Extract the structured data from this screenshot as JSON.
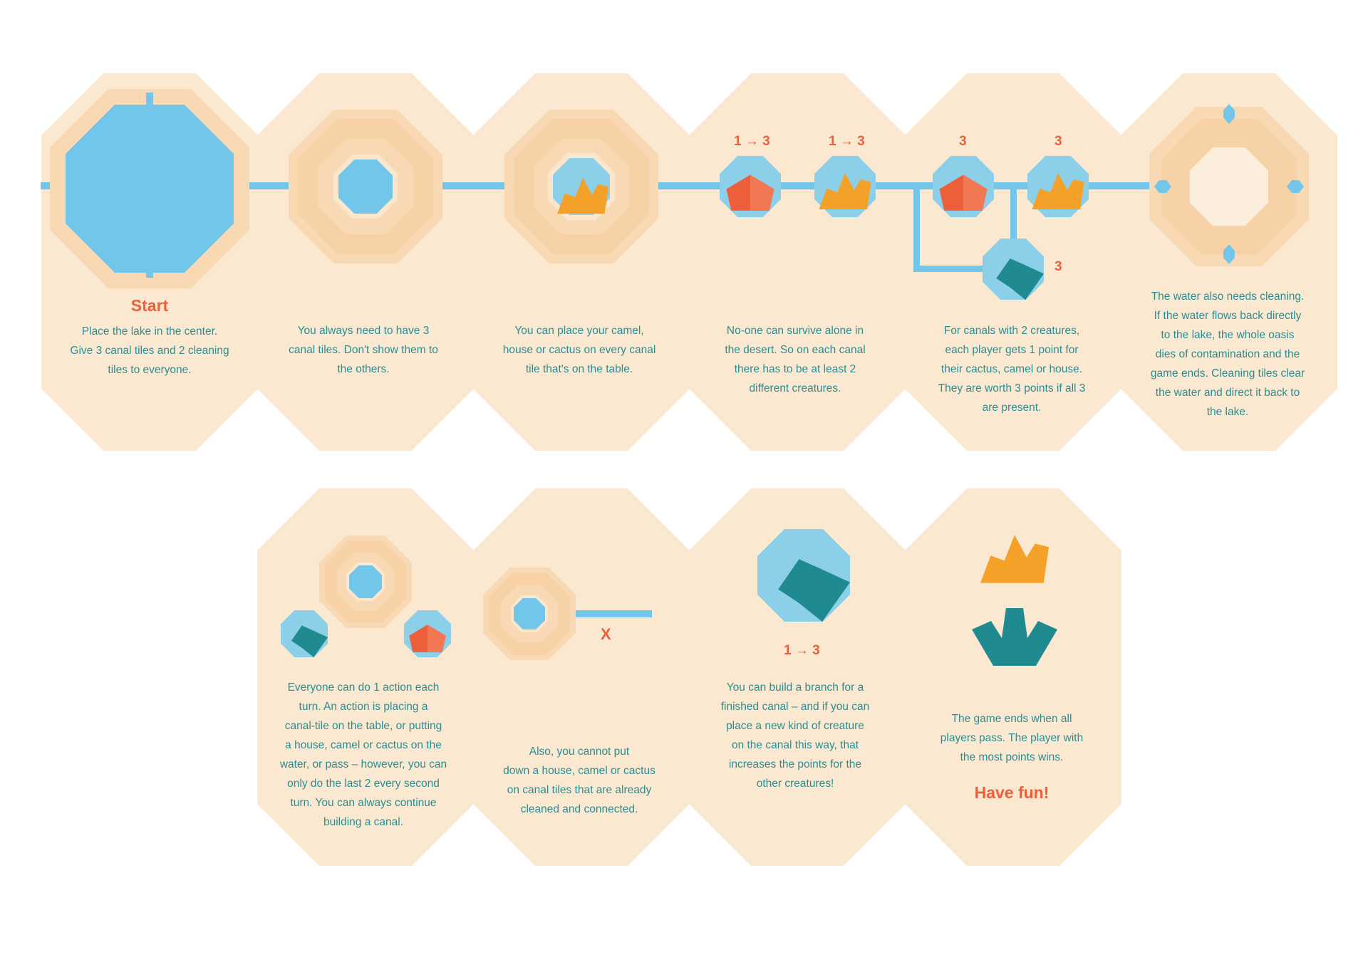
{
  "colors": {
    "card": "#fae9d0",
    "sand_light": "#f9d9b3",
    "sand_mid": "#f6cc9c",
    "water": "#72c6e9",
    "water_light": "#8ccfe9",
    "red": "#ec5f3a",
    "orange": "#f4a12a",
    "teal": "#1f8a8f",
    "text": "#2b8d93"
  },
  "icons": [
    "lake-tile-icon",
    "canal-tile-icon",
    "house-icon",
    "camel-icon",
    "cactus-icon",
    "cleaning-tile-icon"
  ],
  "steps": {
    "s1": {
      "title": "Start",
      "lines": [
        "Place the lake in the center.",
        "Give 3 canal tiles and 2 cleaning",
        "tiles to everyone."
      ]
    },
    "s2": {
      "lines": [
        "You always need to have 3",
        "canal tiles. Don't show them to",
        "the others."
      ]
    },
    "s3": {
      "lines": [
        "You can place your camel,",
        "house or cactus on every canal",
        "tile that's on the table."
      ]
    },
    "s4": {
      "badges": [
        "1 → 3",
        "1 → 3"
      ],
      "lines": [
        "No-one can survive alone in",
        "the desert. So on each canal",
        "there has to be at least 2",
        "different creatures."
      ]
    },
    "s5": {
      "badges": [
        "3",
        "3",
        "3"
      ],
      "lines": [
        "For canals with 2 creatures,",
        "each player gets 1 point for",
        "their cactus, camel or house.",
        "They are worth 3 points if all 3",
        "are present."
      ]
    },
    "s6": {
      "lines": [
        "The water also needs cleaning.",
        "If the water flows back directly",
        "to the lake, the whole oasis",
        "dies of contamination and the",
        "game ends. Cleaning tiles clear",
        "the water and direct it back to",
        "the lake."
      ]
    },
    "s7": {
      "lines": [
        "Everyone can do 1 action each",
        "turn. An action is placing a",
        "canal-tile on the table, or putting",
        "a house, camel or cactus on the",
        "water, or pass – however, you can",
        "only do the last 2 every second",
        "turn. You can always continue",
        "building a canal."
      ]
    },
    "s8": {
      "mark": "X",
      "lines": [
        "Also, you cannot put",
        "down a house, camel or cactus",
        "on canal tiles that are already",
        "cleaned and connected."
      ]
    },
    "s9": {
      "badge": "1 → 3",
      "lines": [
        "You can build a branch for a",
        "finished canal – and if you can",
        "place a new kind of creature",
        "on the canal this way, that",
        "increases the points for the",
        "other creatures!"
      ]
    },
    "s10": {
      "lines": [
        "The game ends when all",
        "players pass. The player with",
        "the most points wins."
      ],
      "footer": "Have fun!"
    }
  }
}
